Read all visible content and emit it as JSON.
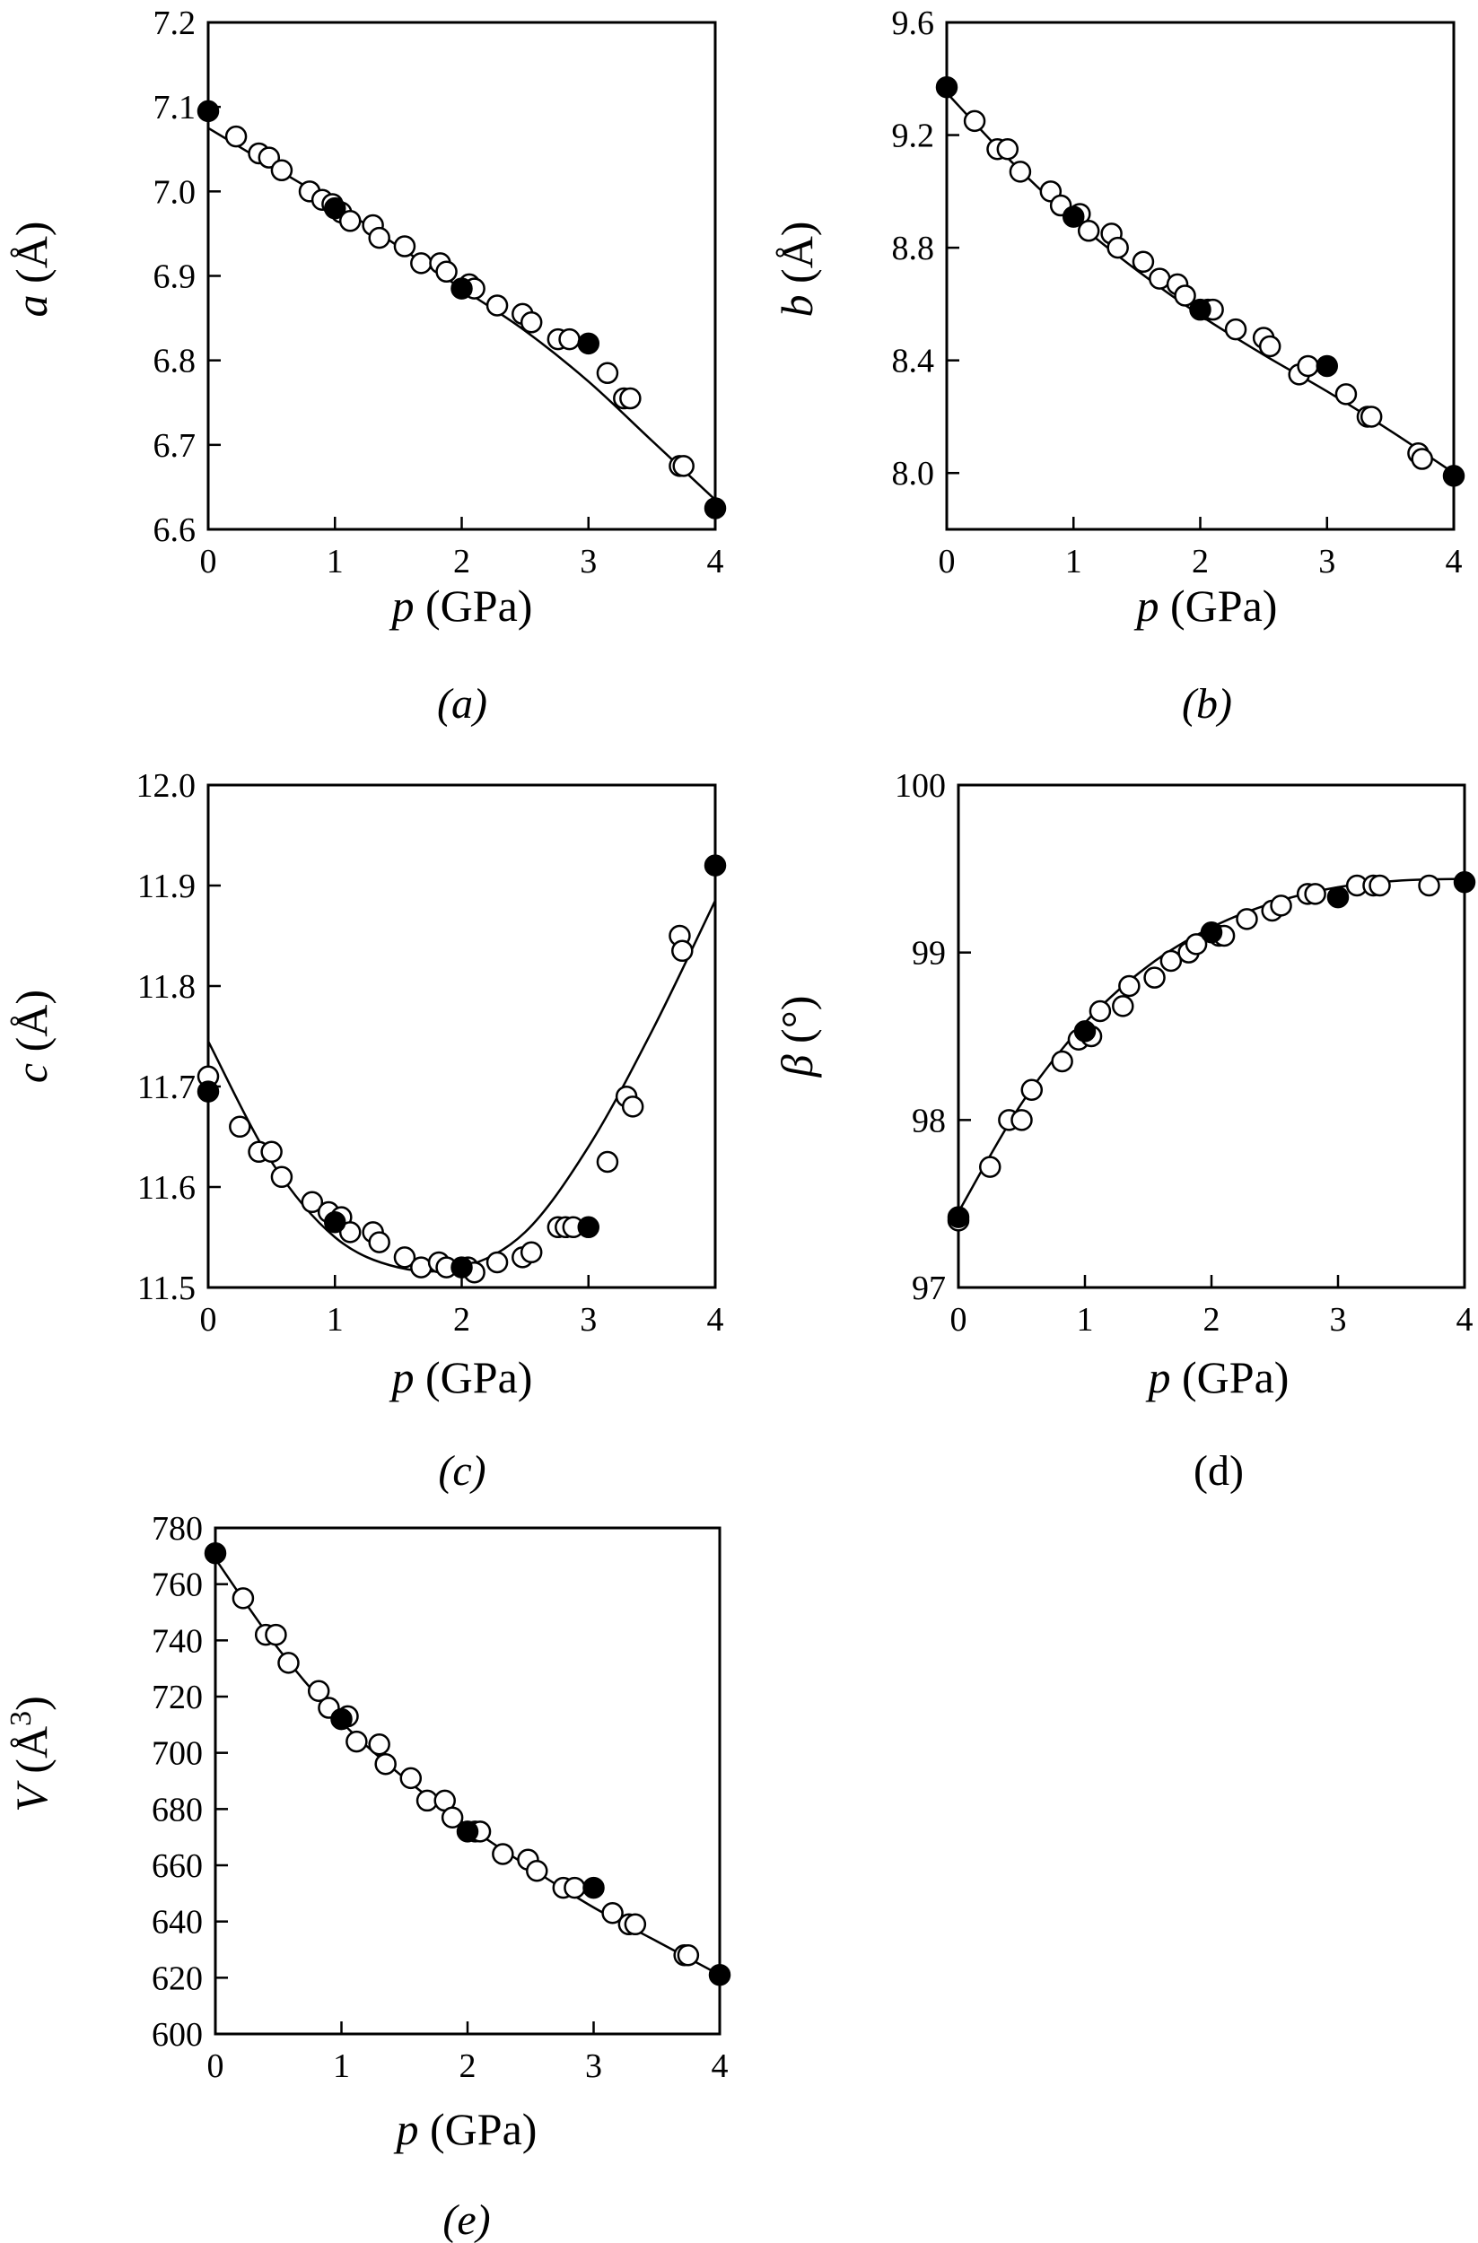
{
  "chart_data": [
    {
      "type": "scatter",
      "panel_label": "(a)",
      "xlabel_var": "p",
      "xlabel_unit": "(GPa)",
      "ylabel_var": "a",
      "ylabel_unit": "(Å)",
      "xlim": [
        0,
        4
      ],
      "ylim": [
        6.6,
        7.2
      ],
      "x_ticks": [
        "0",
        "1",
        "2",
        "3",
        "4"
      ],
      "y_ticks": [
        "6.6",
        "6.7",
        "6.8",
        "6.9",
        "7.0",
        "7.1",
        "7.2"
      ],
      "grid": false,
      "series": [
        {
          "marker": "open-circle",
          "x": [
            0.22,
            0.4,
            0.48,
            0.58,
            0.8,
            0.9,
            0.98,
            1.05,
            1.12,
            1.3,
            1.35,
            1.55,
            1.68,
            1.83,
            1.88,
            2.06,
            2.1,
            2.28,
            2.48,
            2.55,
            2.76,
            2.85,
            3.15,
            3.28,
            3.33,
            3.72,
            3.75
          ],
          "y": [
            7.065,
            7.045,
            7.04,
            7.025,
            7.0,
            6.99,
            6.985,
            6.975,
            6.965,
            6.96,
            6.945,
            6.935,
            6.915,
            6.915,
            6.905,
            6.89,
            6.885,
            6.865,
            6.855,
            6.845,
            6.825,
            6.825,
            6.785,
            6.755,
            6.755,
            6.675,
            6.675
          ]
        },
        {
          "marker": "filled-circle",
          "x": [
            0,
            1,
            2,
            3,
            4
          ],
          "y": [
            7.095,
            6.98,
            6.885,
            6.82,
            6.625
          ]
        }
      ],
      "fit_curve": {
        "x": [
          0,
          0.5,
          1,
          1.5,
          2,
          2.5,
          3,
          3.5,
          4
        ],
        "y": [
          7.075,
          7.03,
          6.985,
          6.935,
          6.885,
          6.835,
          6.775,
          6.705,
          6.635
        ]
      }
    },
    {
      "type": "scatter",
      "panel_label": "(b)",
      "xlabel_var": "p",
      "xlabel_unit": "(GPa)",
      "ylabel_var": "b",
      "ylabel_unit": "(Å)",
      "xlim": [
        0,
        4
      ],
      "ylim": [
        7.8,
        9.6
      ],
      "x_ticks": [
        "0",
        "1",
        "2",
        "3",
        "4"
      ],
      "y_ticks": [
        "8.0",
        "8.4",
        "8.8",
        "9.2",
        "9.6"
      ],
      "y_tick_values": [
        8.0,
        8.4,
        8.8,
        9.2,
        9.6
      ],
      "grid": false,
      "series": [
        {
          "marker": "open-circle",
          "x": [
            0.22,
            0.4,
            0.48,
            0.58,
            0.82,
            0.9,
            1.05,
            1.12,
            1.3,
            1.35,
            1.55,
            1.68,
            1.82,
            1.88,
            2.06,
            2.1,
            2.28,
            2.5,
            2.55,
            2.78,
            2.85,
            3.15,
            3.32,
            3.35,
            3.72,
            3.75
          ],
          "y": [
            9.25,
            9.15,
            9.15,
            9.07,
            9.0,
            8.95,
            8.92,
            8.86,
            8.85,
            8.8,
            8.75,
            8.69,
            8.67,
            8.63,
            8.58,
            8.58,
            8.51,
            8.48,
            8.45,
            8.35,
            8.38,
            8.28,
            8.2,
            8.2,
            8.07,
            8.05
          ]
        },
        {
          "marker": "filled-circle",
          "x": [
            0,
            1,
            2,
            3,
            4
          ],
          "y": [
            9.37,
            8.91,
            8.58,
            8.38,
            7.99
          ]
        }
      ],
      "fit_curve": {
        "x": [
          0,
          0.5,
          1,
          1.5,
          2,
          2.5,
          3,
          3.5,
          4
        ],
        "y": [
          9.35,
          9.11,
          8.9,
          8.72,
          8.56,
          8.42,
          8.29,
          8.15,
          8.0
        ]
      }
    },
    {
      "type": "scatter",
      "panel_label": "(c)",
      "xlabel_var": "p",
      "xlabel_unit": "(GPa)",
      "ylabel_var": "c",
      "ylabel_unit": "(Å)",
      "xlim": [
        0,
        4
      ],
      "ylim": [
        11.5,
        12.0
      ],
      "x_ticks": [
        "0",
        "1",
        "2",
        "3",
        "4"
      ],
      "y_ticks": [
        "11.5",
        "11.6",
        "11.7",
        "11.8",
        "11.9",
        "12.0"
      ],
      "grid": false,
      "series": [
        {
          "marker": "open-circle",
          "x": [
            0,
            0.25,
            0.4,
            0.5,
            0.58,
            0.82,
            0.95,
            1.05,
            1.12,
            1.3,
            1.35,
            1.55,
            1.68,
            1.82,
            1.88,
            2.05,
            2.1,
            2.28,
            2.48,
            2.55,
            2.76,
            2.82,
            2.88,
            3.15,
            3.3,
            3.35,
            3.72,
            3.74
          ],
          "y": [
            11.71,
            11.66,
            11.635,
            11.635,
            11.61,
            11.585,
            11.575,
            11.57,
            11.555,
            11.555,
            11.545,
            11.53,
            11.52,
            11.525,
            11.52,
            11.52,
            11.515,
            11.525,
            11.53,
            11.535,
            11.56,
            11.56,
            11.56,
            11.625,
            11.69,
            11.68,
            11.85,
            11.835
          ]
        },
        {
          "marker": "filled-circle",
          "x": [
            0,
            1,
            2,
            3,
            4
          ],
          "y": [
            11.695,
            11.565,
            11.52,
            11.56,
            11.92
          ]
        }
      ],
      "fit_curve": {
        "x": [
          0,
          0.5,
          1,
          1.5,
          2,
          2.5,
          3,
          3.5,
          4
        ],
        "y": [
          11.745,
          11.625,
          11.55,
          11.52,
          11.52,
          11.555,
          11.64,
          11.755,
          11.885
        ]
      }
    },
    {
      "type": "scatter",
      "panel_label": "(d)",
      "xlabel_var": "p",
      "xlabel_unit": "(GPa)",
      "ylabel_var": "β",
      "ylabel_unit": "(°)",
      "xlim": [
        0,
        4
      ],
      "ylim": [
        97,
        100
      ],
      "x_ticks": [
        "0",
        "1",
        "2",
        "3",
        "4"
      ],
      "y_ticks": [
        "97",
        "98",
        "99",
        "100"
      ],
      "grid": false,
      "series": [
        {
          "marker": "open-circle",
          "x": [
            0,
            0.25,
            0.4,
            0.5,
            0.58,
            0.82,
            0.95,
            1.05,
            1.12,
            1.3,
            1.35,
            1.55,
            1.68,
            1.82,
            1.88,
            2.06,
            2.1,
            2.28,
            2.48,
            2.55,
            2.76,
            2.82,
            3.15,
            3.28,
            3.33,
            3.72
          ],
          "y": [
            97.4,
            97.72,
            98.0,
            98.0,
            98.18,
            98.35,
            98.48,
            98.5,
            98.65,
            98.68,
            98.8,
            98.85,
            98.95,
            99.0,
            99.05,
            99.1,
            99.1,
            99.2,
            99.25,
            99.28,
            99.35,
            99.35,
            99.4,
            99.4,
            99.4,
            99.4
          ]
        },
        {
          "marker": "filled-circle",
          "x": [
            0,
            1,
            2,
            3,
            4
          ],
          "y": [
            97.42,
            98.53,
            99.12,
            99.33,
            99.42
          ]
        }
      ],
      "fit_curve": {
        "x": [
          0,
          0.5,
          1,
          1.5,
          2,
          2.5,
          3,
          3.5,
          4
        ],
        "y": [
          97.45,
          98.1,
          98.58,
          98.92,
          99.15,
          99.3,
          99.39,
          99.43,
          99.44
        ]
      }
    },
    {
      "type": "scatter",
      "panel_label": "(e)",
      "xlabel_var": "p",
      "xlabel_unit": "(GPa)",
      "ylabel_var": "V",
      "ylabel_unit": "(Å",
      "ylabel_sup": "3",
      "ylabel_close": ")",
      "xlim": [
        0,
        4
      ],
      "ylim": [
        600,
        780
      ],
      "x_ticks": [
        "0",
        "1",
        "2",
        "3",
        "4"
      ],
      "y_ticks": [
        "600",
        "620",
        "640",
        "660",
        "680",
        "700",
        "720",
        "740",
        "760",
        "780"
      ],
      "grid": false,
      "series": [
        {
          "marker": "open-circle",
          "x": [
            0.22,
            0.4,
            0.48,
            0.58,
            0.82,
            0.9,
            1.05,
            1.12,
            1.3,
            1.35,
            1.55,
            1.68,
            1.82,
            1.88,
            2.06,
            2.1,
            2.28,
            2.48,
            2.55,
            2.76,
            2.85,
            3.15,
            3.28,
            3.33,
            3.72,
            3.75
          ],
          "y": [
            755,
            742,
            742,
            732,
            722,
            716,
            713,
            704,
            703,
            696,
            691,
            683,
            683,
            677,
            672,
            672,
            664,
            662,
            658,
            652,
            652,
            643,
            639,
            639,
            628,
            628
          ]
        },
        {
          "marker": "filled-circle",
          "x": [
            0,
            1,
            2,
            3,
            4
          ],
          "y": [
            771,
            712,
            672,
            652,
            621
          ]
        }
      ],
      "fit_curve": {
        "x": [
          0,
          0.5,
          1,
          1.5,
          2,
          2.5,
          3,
          3.5,
          4
        ],
        "y": [
          769,
          737,
          711,
          691,
          674,
          659,
          645,
          633,
          621
        ]
      }
    }
  ]
}
